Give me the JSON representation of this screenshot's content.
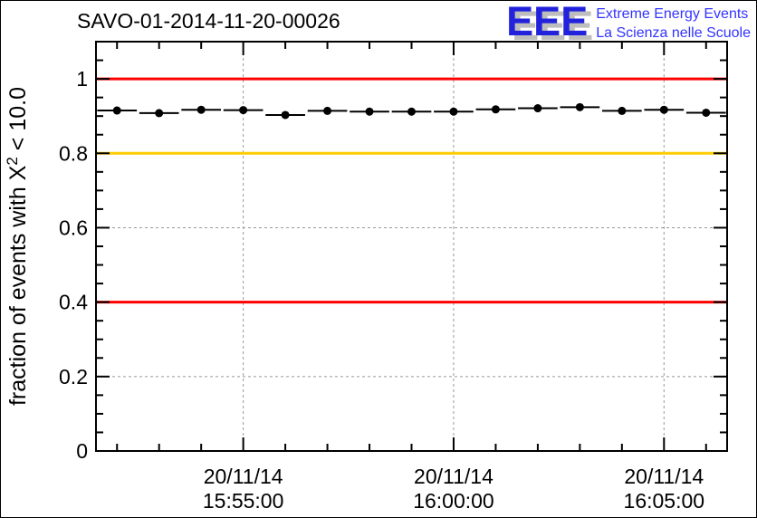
{
  "logo": {
    "acronym": "EEE",
    "line1": "Extreme Energy Events",
    "line2": "La Scienza nelle Scuole",
    "blue": "#2222dd",
    "text_blue": "#3333ff"
  },
  "chart_data": {
    "type": "line",
    "title": "SAVO-01-2014-11-20-00026",
    "ylabel": {
      "pre": "fraction of events with X",
      "sup": "2",
      "post": " < 10.0"
    },
    "grid": {
      "style": "dashed",
      "color": "#999999"
    },
    "x_axis": {
      "range_minutes": [
        -0.5,
        14.5
      ],
      "minor_step_minutes": 1,
      "major_minutes": [
        3,
        8,
        13
      ],
      "major_tick_labels": [
        {
          "date": "20/11/14",
          "time": "15:55:00"
        },
        {
          "date": "20/11/14",
          "time": "16:00:00"
        },
        {
          "date": "20/11/14",
          "time": "16:05:00"
        }
      ]
    },
    "y_axis": {
      "range": [
        0,
        1.1
      ],
      "major_ticks": [
        0,
        0.2,
        0.4,
        0.6,
        0.8,
        1
      ],
      "major_labels": [
        "0",
        "0.2",
        "0.4",
        "0.6",
        "0.8",
        "1"
      ],
      "minor_step": 0.05
    },
    "reference_lines": [
      {
        "y": 1.0,
        "color": "#ff0000"
      },
      {
        "y": 0.8,
        "color": "#ffcc00"
      },
      {
        "y": 0.4,
        "color": "#ff0000"
      }
    ],
    "series": [
      {
        "name": "fraction of events with chi2 < 10.0",
        "marker": "filled-circle",
        "color": "#000000",
        "x_error_minutes": 0.47,
        "date": "20/11/14",
        "x_times": [
          "15:52:00",
          "15:53:00",
          "15:54:00",
          "15:55:00",
          "15:56:00",
          "15:57:00",
          "15:58:00",
          "15:59:00",
          "16:00:00",
          "16:01:00",
          "16:02:00",
          "16:03:00",
          "16:04:00",
          "16:05:00",
          "16:06:00"
        ],
        "values": [
          0.915,
          0.908,
          0.917,
          0.916,
          0.903,
          0.914,
          0.912,
          0.912,
          0.912,
          0.918,
          0.921,
          0.924,
          0.914,
          0.917,
          0.909
        ]
      }
    ]
  }
}
